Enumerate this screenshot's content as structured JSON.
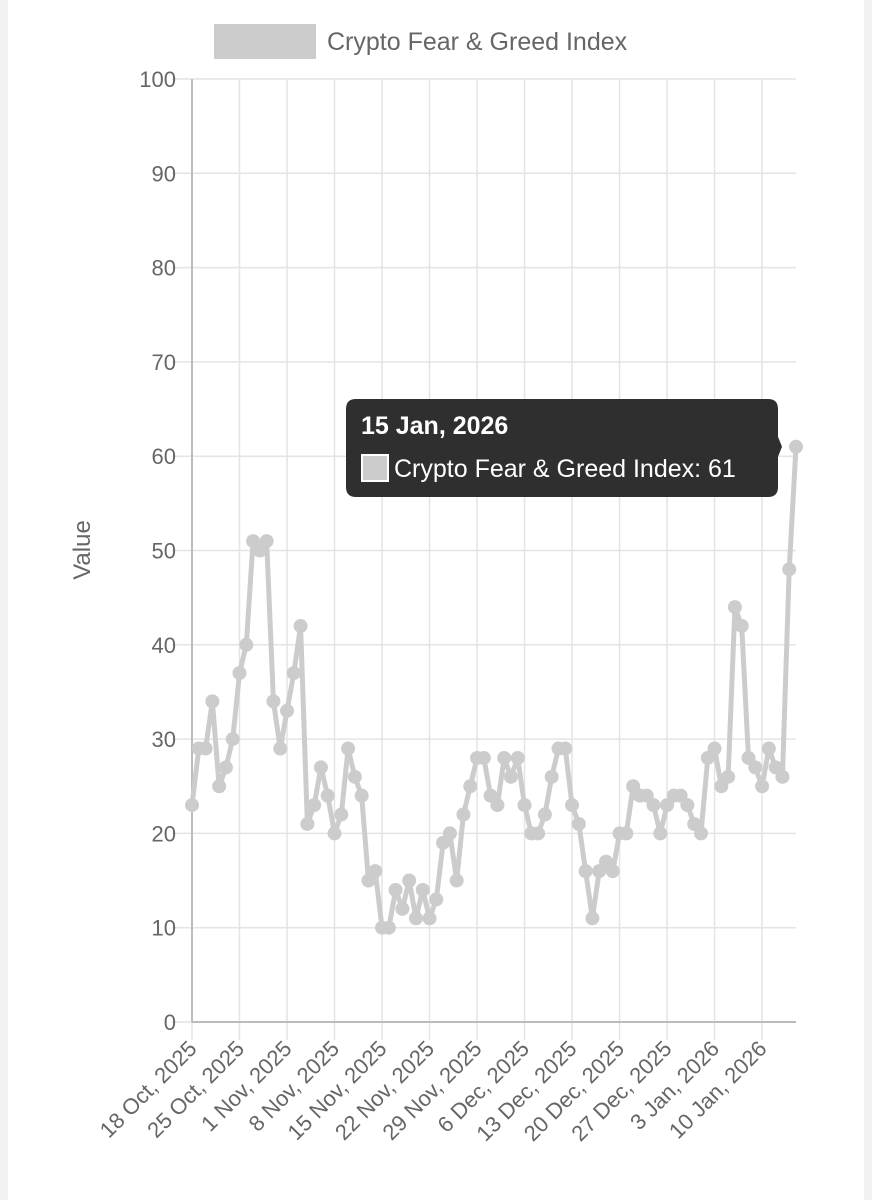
{
  "chart_data": {
    "type": "line",
    "title": "",
    "xlabel": "",
    "ylabel": "Value",
    "ylim": [
      0,
      100
    ],
    "y_ticks": [
      0,
      10,
      20,
      30,
      40,
      50,
      60,
      70,
      80,
      90,
      100
    ],
    "grid": true,
    "legend_position": "top",
    "x_tick_labels": [
      "18 Oct, 2025",
      "25 Oct, 2025",
      "1 Nov, 2025",
      "8 Nov, 2025",
      "15 Nov, 2025",
      "22 Nov, 2025",
      "29 Nov, 2025",
      "6 Dec, 2025",
      "13 Dec, 2025",
      "20 Dec, 2025",
      "27 Dec, 2025",
      "3 Jan, 2026",
      "10 Jan, 2026"
    ],
    "series": [
      {
        "name": "Crypto Fear & Greed Index",
        "color": "#cccccc",
        "values": [
          23,
          29,
          29,
          34,
          25,
          27,
          30,
          37,
          40,
          51,
          50,
          51,
          34,
          29,
          33,
          37,
          42,
          21,
          23,
          27,
          24,
          20,
          22,
          29,
          26,
          24,
          15,
          16,
          10,
          10,
          14,
          12,
          15,
          11,
          14,
          11,
          13,
          19,
          20,
          15,
          22,
          25,
          28,
          28,
          24,
          23,
          28,
          26,
          28,
          23,
          20,
          20,
          22,
          26,
          29,
          29,
          23,
          21,
          16,
          11,
          16,
          17,
          16,
          20,
          20,
          25,
          24,
          24,
          23,
          20,
          23,
          24,
          24,
          23,
          21,
          20,
          28,
          29,
          25,
          26,
          44,
          42,
          28,
          27,
          25,
          29,
          27,
          26,
          48,
          61
        ]
      }
    ],
    "tooltip": {
      "title": "15 Jan, 2026",
      "label": "Crypto Fear & Greed Index: 61"
    }
  }
}
